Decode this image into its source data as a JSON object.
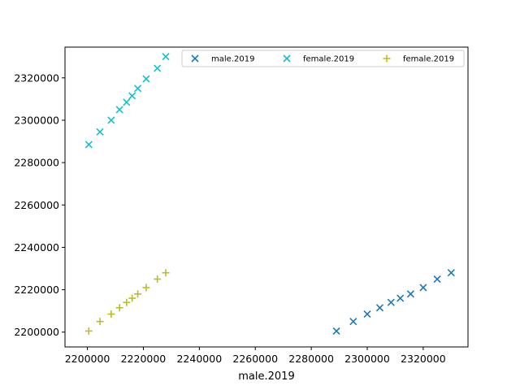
{
  "chart_data": {
    "type": "scatter",
    "title": "",
    "xlabel": "male.2019",
    "ylabel": "",
    "xlim": [
      2192000,
      2336000
    ],
    "ylim": [
      2193000,
      2334500
    ],
    "xticks": [
      2200000,
      2220000,
      2240000,
      2260000,
      2280000,
      2300000,
      2320000
    ],
    "yticks": [
      2200000,
      2220000,
      2240000,
      2260000,
      2280000,
      2300000,
      2320000
    ],
    "grid": false,
    "legend": {
      "placement": "top-right",
      "columns": 3
    },
    "series": [
      {
        "name": "male.2019",
        "marker": "x",
        "color": "#1f77b4",
        "points": [
          [
            2289000,
            2200500
          ],
          [
            2295000,
            2205000
          ],
          [
            2300000,
            2208500
          ],
          [
            2304500,
            2211500
          ],
          [
            2308500,
            2214000
          ],
          [
            2311800,
            2216000
          ],
          [
            2315500,
            2218000
          ],
          [
            2320000,
            2221000
          ],
          [
            2325000,
            2225000
          ],
          [
            2330000,
            2228000
          ]
        ]
      },
      {
        "name": "female.2019",
        "marker": "x",
        "color": "#17becf",
        "points": [
          [
            2200500,
            2288500
          ],
          [
            2204500,
            2294500
          ],
          [
            2208500,
            2300000
          ],
          [
            2211500,
            2305000
          ],
          [
            2214000,
            2308500
          ],
          [
            2216000,
            2311500
          ],
          [
            2218000,
            2315000
          ],
          [
            2221000,
            2319500
          ],
          [
            2225000,
            2324500
          ],
          [
            2228000,
            2330000
          ]
        ]
      },
      {
        "name": "female.2019",
        "marker": "+",
        "color": "#bcbd22",
        "points": [
          [
            2200500,
            2200500
          ],
          [
            2204500,
            2205000
          ],
          [
            2208500,
            2208500
          ],
          [
            2211500,
            2211500
          ],
          [
            2214000,
            2214000
          ],
          [
            2216000,
            2216000
          ],
          [
            2218000,
            2218000
          ],
          [
            2221000,
            2221000
          ],
          [
            2225000,
            2225000
          ],
          [
            2228000,
            2228000
          ]
        ]
      }
    ]
  }
}
